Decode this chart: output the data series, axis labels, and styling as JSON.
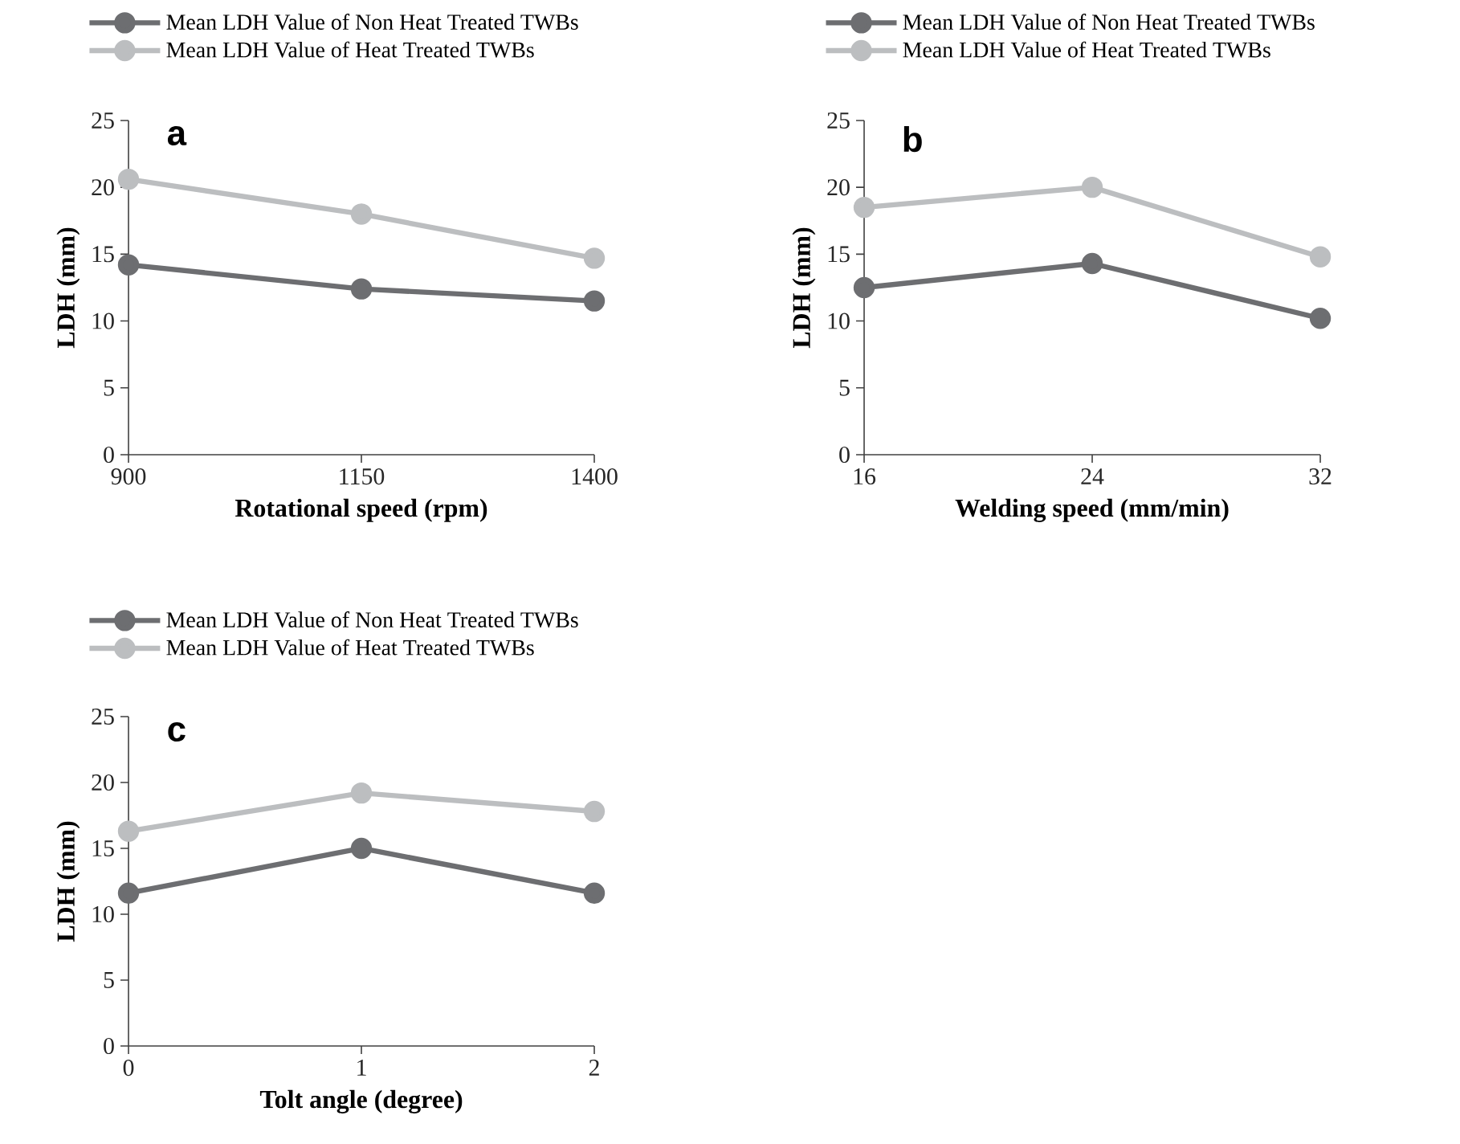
{
  "chart_data": [
    {
      "type": "line",
      "title": "a",
      "xlabel": "Rotational speed (rpm)",
      "ylabel": "LDH (mm)",
      "x": [
        900,
        1150,
        1400
      ],
      "xlim": [
        900,
        1400
      ],
      "xticks": [
        900,
        1150,
        1400
      ],
      "ylim": [
        0,
        25
      ],
      "yticks": [
        0,
        5,
        10,
        15,
        20,
        25
      ],
      "legend": "top",
      "marker": "circle",
      "line_style": "solid",
      "series": [
        {
          "name": "Mean LDH Value of Non Heat Treated TWBs",
          "color": "#6d6e71",
          "values": [
            14.2,
            12.4,
            11.5
          ]
        },
        {
          "name": "Mean LDH Value of  Heat Treated TWBs",
          "color": "#bcbec0",
          "values": [
            20.6,
            18.0,
            14.7
          ]
        }
      ]
    },
    {
      "type": "line",
      "title": "b",
      "xlabel": "Welding speed (mm/min)",
      "ylabel": "LDH (mm)",
      "x": [
        16,
        24,
        32
      ],
      "xlim": [
        16,
        32
      ],
      "xticks": [
        16,
        24,
        32
      ],
      "ylim": [
        0,
        25
      ],
      "yticks": [
        0,
        5,
        10,
        15,
        20,
        25
      ],
      "legend": "top",
      "marker": "circle",
      "line_style": "solid",
      "series": [
        {
          "name": "Mean LDH Value of Non Heat Treated TWBs",
          "color": "#6d6e71",
          "values": [
            12.5,
            14.3,
            10.2
          ]
        },
        {
          "name": "Mean LDH Value of  Heat Treated TWBs",
          "color": "#bcbec0",
          "values": [
            18.5,
            20.0,
            14.8
          ]
        }
      ]
    },
    {
      "type": "line",
      "title": "c",
      "xlabel": "Tolt angle (degree)",
      "ylabel": "LDH (mm)",
      "x": [
        0,
        1,
        2
      ],
      "xlim": [
        0,
        2
      ],
      "xticks": [
        0,
        1,
        2
      ],
      "ylim": [
        0,
        25
      ],
      "yticks": [
        0,
        5,
        10,
        15,
        20,
        25
      ],
      "legend": "top",
      "marker": "circle",
      "line_style": "solid",
      "series": [
        {
          "name": "Mean LDH Value of Non Heat Treated TWBs",
          "color": "#6d6e71",
          "values": [
            11.6,
            15.0,
            11.6
          ]
        },
        {
          "name": "Mean LDH Value of Heat Treated TWBs",
          "color": "#bcbec0",
          "values": [
            16.3,
            19.2,
            17.8
          ]
        }
      ]
    }
  ]
}
